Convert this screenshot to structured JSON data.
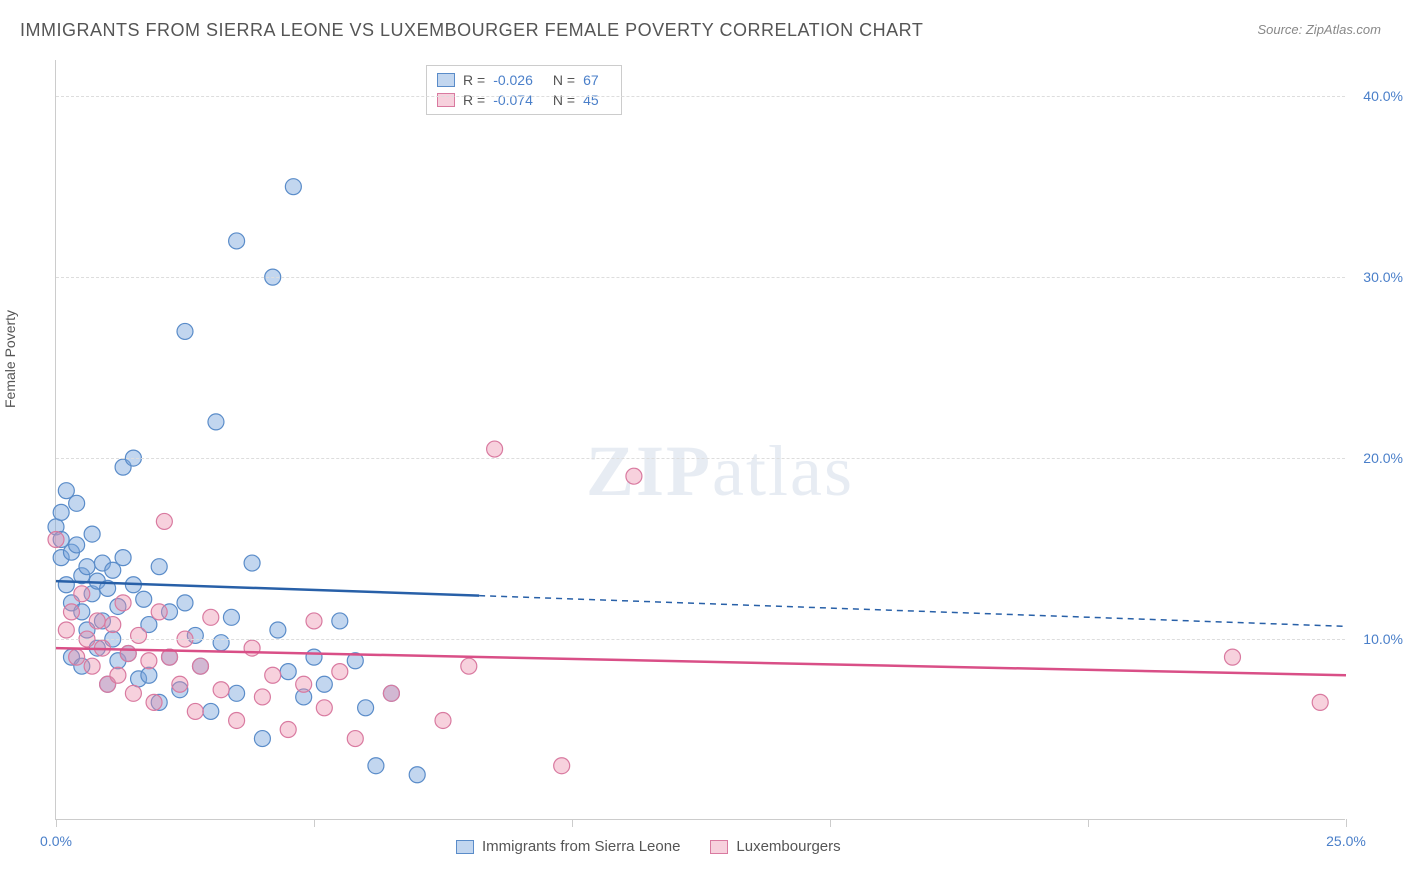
{
  "title": "IMMIGRANTS FROM SIERRA LEONE VS LUXEMBOURGER FEMALE POVERTY CORRELATION CHART",
  "source_prefix": "Source: ",
  "source_name": "ZipAtlas.com",
  "y_axis_label": "Female Poverty",
  "watermark_bold": "ZIP",
  "watermark_rest": "atlas",
  "chart": {
    "type": "scatter",
    "xlim": [
      0,
      25
    ],
    "ylim": [
      0,
      42
    ],
    "y_ticks": [
      10,
      20,
      30,
      40
    ],
    "y_tick_labels": [
      "10.0%",
      "20.0%",
      "30.0%",
      "40.0%"
    ],
    "x_ticks": [
      0,
      5,
      10,
      15,
      20,
      25
    ],
    "x_tick_labels_shown": {
      "0": "0.0%",
      "25": "25.0%"
    },
    "grid_color": "#dddddd",
    "axis_color": "#cccccc",
    "background_color": "#ffffff",
    "series": [
      {
        "name": "Immigrants from Sierra Leone",
        "color_fill": "rgba(120, 165, 220, 0.45)",
        "color_stroke": "#5a8cc9",
        "line_color": "#2860a8",
        "r_value": "-0.026",
        "n_value": "67",
        "trend_solid": {
          "x1": 0,
          "y1": 13.2,
          "x2": 8.2,
          "y2": 12.4
        },
        "trend_dashed": {
          "x1": 8.2,
          "y1": 12.4,
          "x2": 25,
          "y2": 10.7
        },
        "points": [
          [
            0.0,
            16.2
          ],
          [
            0.1,
            17.0
          ],
          [
            0.1,
            14.5
          ],
          [
            0.1,
            15.5
          ],
          [
            0.2,
            18.2
          ],
          [
            0.2,
            13.0
          ],
          [
            0.3,
            12.0
          ],
          [
            0.3,
            14.8
          ],
          [
            0.3,
            9.0
          ],
          [
            0.4,
            15.2
          ],
          [
            0.4,
            17.5
          ],
          [
            0.5,
            11.5
          ],
          [
            0.5,
            13.5
          ],
          [
            0.5,
            8.5
          ],
          [
            0.6,
            14.0
          ],
          [
            0.6,
            10.5
          ],
          [
            0.7,
            12.5
          ],
          [
            0.7,
            15.8
          ],
          [
            0.8,
            9.5
          ],
          [
            0.8,
            13.2
          ],
          [
            0.9,
            11.0
          ],
          [
            0.9,
            14.2
          ],
          [
            1.0,
            7.5
          ],
          [
            1.0,
            12.8
          ],
          [
            1.1,
            10.0
          ],
          [
            1.1,
            13.8
          ],
          [
            1.2,
            8.8
          ],
          [
            1.2,
            11.8
          ],
          [
            1.3,
            14.5
          ],
          [
            1.3,
            19.5
          ],
          [
            1.4,
            9.2
          ],
          [
            1.5,
            13.0
          ],
          [
            1.5,
            20.0
          ],
          [
            1.6,
            7.8
          ],
          [
            1.7,
            12.2
          ],
          [
            1.8,
            10.8
          ],
          [
            1.8,
            8.0
          ],
          [
            2.0,
            14.0
          ],
          [
            2.0,
            6.5
          ],
          [
            2.2,
            11.5
          ],
          [
            2.2,
            9.0
          ],
          [
            2.4,
            7.2
          ],
          [
            2.5,
            12.0
          ],
          [
            2.5,
            27.0
          ],
          [
            2.7,
            10.2
          ],
          [
            2.8,
            8.5
          ],
          [
            3.0,
            6.0
          ],
          [
            3.1,
            22.0
          ],
          [
            3.2,
            9.8
          ],
          [
            3.4,
            11.2
          ],
          [
            3.5,
            32.0
          ],
          [
            3.5,
            7.0
          ],
          [
            3.8,
            14.2
          ],
          [
            4.0,
            4.5
          ],
          [
            4.2,
            30.0
          ],
          [
            4.3,
            10.5
          ],
          [
            4.5,
            8.2
          ],
          [
            4.6,
            35.0
          ],
          [
            4.8,
            6.8
          ],
          [
            5.0,
            9.0
          ],
          [
            5.2,
            7.5
          ],
          [
            5.5,
            11.0
          ],
          [
            5.8,
            8.8
          ],
          [
            6.0,
            6.2
          ],
          [
            6.2,
            3.0
          ],
          [
            6.5,
            7.0
          ],
          [
            7.0,
            2.5
          ]
        ]
      },
      {
        "name": "Luxembourgers",
        "color_fill": "rgba(235, 140, 170, 0.40)",
        "color_stroke": "#d97aa0",
        "line_color": "#d94f87",
        "r_value": "-0.074",
        "n_value": "45",
        "trend_solid": {
          "x1": 0,
          "y1": 9.5,
          "x2": 25,
          "y2": 8.0
        },
        "trend_dashed": null,
        "points": [
          [
            0.0,
            15.5
          ],
          [
            0.2,
            10.5
          ],
          [
            0.3,
            11.5
          ],
          [
            0.4,
            9.0
          ],
          [
            0.5,
            12.5
          ],
          [
            0.6,
            10.0
          ],
          [
            0.7,
            8.5
          ],
          [
            0.8,
            11.0
          ],
          [
            0.9,
            9.5
          ],
          [
            1.0,
            7.5
          ],
          [
            1.1,
            10.8
          ],
          [
            1.2,
            8.0
          ],
          [
            1.3,
            12.0
          ],
          [
            1.4,
            9.2
          ],
          [
            1.5,
            7.0
          ],
          [
            1.6,
            10.2
          ],
          [
            1.8,
            8.8
          ],
          [
            1.9,
            6.5
          ],
          [
            2.0,
            11.5
          ],
          [
            2.1,
            16.5
          ],
          [
            2.2,
            9.0
          ],
          [
            2.4,
            7.5
          ],
          [
            2.5,
            10.0
          ],
          [
            2.7,
            6.0
          ],
          [
            2.8,
            8.5
          ],
          [
            3.0,
            11.2
          ],
          [
            3.2,
            7.2
          ],
          [
            3.5,
            5.5
          ],
          [
            3.8,
            9.5
          ],
          [
            4.0,
            6.8
          ],
          [
            4.2,
            8.0
          ],
          [
            4.5,
            5.0
          ],
          [
            4.8,
            7.5
          ],
          [
            5.0,
            11.0
          ],
          [
            5.2,
            6.2
          ],
          [
            5.5,
            8.2
          ],
          [
            5.8,
            4.5
          ],
          [
            6.5,
            7.0
          ],
          [
            7.5,
            5.5
          ],
          [
            8.0,
            8.5
          ],
          [
            8.5,
            20.5
          ],
          [
            9.8,
            3.0
          ],
          [
            11.2,
            19.0
          ],
          [
            22.8,
            9.0
          ],
          [
            24.5,
            6.5
          ]
        ]
      }
    ],
    "marker_radius": 8,
    "marker_stroke_width": 1.2,
    "trend_line_width": 2.5
  },
  "colors": {
    "tick_label": "#4a7fc9",
    "text": "#555555"
  }
}
